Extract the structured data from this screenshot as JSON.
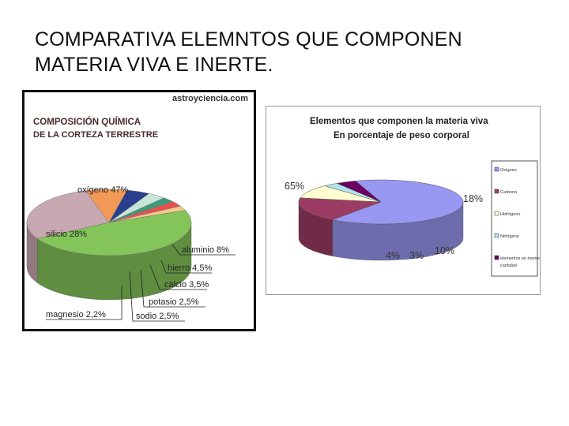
{
  "slide": {
    "title_line1": "COMPARATIVA ELEMNTOS QUE COMPONEN",
    "title_line2": "MATERIA VIVA E INERTE."
  },
  "chart_data": [
    {
      "type": "pie",
      "title": "COMPOSICIÓN QUÍMICA",
      "subtitle": "DE LA CORTEZA TERRESTRE",
      "watermark": "astroyciencia.com",
      "categories": [
        "oxígeno",
        "silicio",
        "aluminio",
        "hierro",
        "calcio",
        "potasio",
        "sodio",
        "magnesio"
      ],
      "values": [
        47,
        28,
        8,
        4.5,
        3.5,
        2.5,
        2.5,
        2.2
      ],
      "labels": [
        "oxígeno 47%",
        "silicio 28%",
        "aluminio 8%",
        "hierro 4,5%",
        "calcio 3,5%",
        "potasio 2,5%",
        "sodio 2,5%",
        "magnesio 2,2%"
      ],
      "colors": [
        "#84c55a",
        "#c8a8b0",
        "#f19a58",
        "#2a3f8e",
        "#c6e6d8",
        "#3f9a78",
        "#e8504e",
        "#f5c88c"
      ],
      "legend": "none"
    },
    {
      "type": "pie",
      "title": "Elementos que componen la materia viva",
      "subtitle": "En porcentaje de peso corporal",
      "categories": [
        "Oxígeno",
        "Carbono",
        "Hidrógeno",
        "Nitrógeno",
        "elementos en menor cantidad"
      ],
      "values": [
        65,
        18,
        10,
        3,
        4
      ],
      "labels": [
        "65%",
        "18%",
        "10%",
        "3%",
        "4%"
      ],
      "colors": [
        "#9898f2",
        "#9c3c64",
        "#fefed0",
        "#b0e4ec",
        "#6a0060"
      ],
      "legend": "right"
    }
  ]
}
